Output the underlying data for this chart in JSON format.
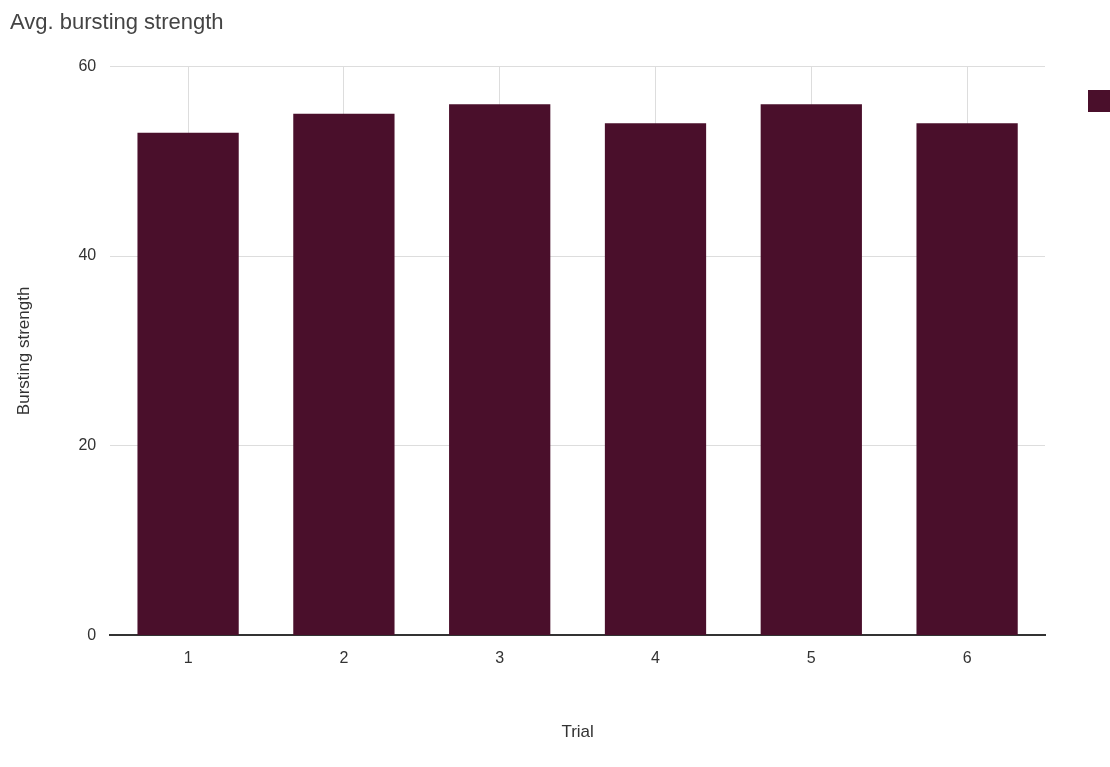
{
  "chart_data": {
    "type": "bar",
    "title": "Avg. bursting strength",
    "xlabel": "Trial",
    "ylabel": "Bursting strength",
    "categories": [
      "1",
      "2",
      "3",
      "4",
      "5",
      "6"
    ],
    "series": [
      {
        "color": "#4a0f2b",
        "values": [
          53,
          55,
          56,
          54,
          56,
          54
        ]
      }
    ],
    "ylim": [
      0,
      60
    ],
    "yticks": [
      0,
      20,
      40,
      60
    ],
    "grid": true
  }
}
